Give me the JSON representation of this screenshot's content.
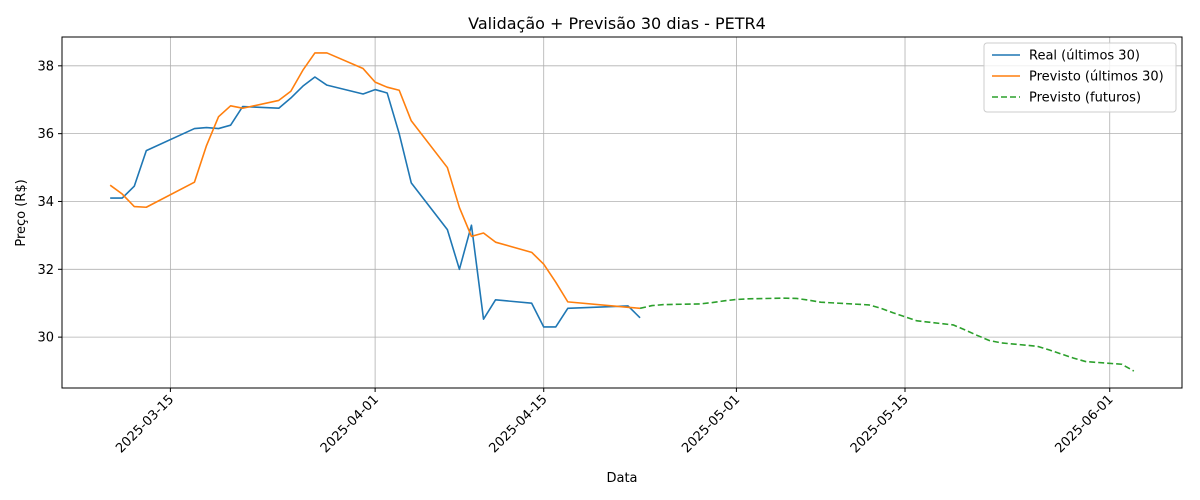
{
  "chart_data": {
    "type": "line",
    "title": "Validação + Previsão 30 dias - PETR4",
    "xlabel": "Data",
    "ylabel": "Preço (R$)",
    "xlim": [
      "2025-03-06",
      "2025-06-07"
    ],
    "ylim": [
      28.5,
      38.85
    ],
    "x_ticks": [
      "2025-03-15",
      "2025-04-01",
      "2025-04-15",
      "2025-05-01",
      "2025-05-15",
      "2025-06-01"
    ],
    "y_ticks": [
      30,
      32,
      34,
      36,
      38
    ],
    "grid": true,
    "legend_position": "top-right",
    "series": [
      {
        "name": "Real (últimos 30)",
        "color": "#1f77b4",
        "style": "solid",
        "x": [
          "2025-03-10",
          "2025-03-11",
          "2025-03-12",
          "2025-03-13",
          "2025-03-17",
          "2025-03-18",
          "2025-03-19",
          "2025-03-20",
          "2025-03-21",
          "2025-03-24",
          "2025-03-25",
          "2025-03-26",
          "2025-03-27",
          "2025-03-28",
          "2025-03-31",
          "2025-04-01",
          "2025-04-02",
          "2025-04-03",
          "2025-04-04",
          "2025-04-07",
          "2025-04-08",
          "2025-04-09",
          "2025-04-10",
          "2025-04-11",
          "2025-04-14",
          "2025-04-15",
          "2025-04-16",
          "2025-04-17",
          "2025-04-22",
          "2025-04-23"
        ],
        "y": [
          34.1,
          34.1,
          34.45,
          35.5,
          36.15,
          36.18,
          36.15,
          36.25,
          36.8,
          36.75,
          37.05,
          37.4,
          37.67,
          37.43,
          37.17,
          37.3,
          37.2,
          36.0,
          34.55,
          33.17,
          32.0,
          33.3,
          30.53,
          31.1,
          31.0,
          30.3,
          30.3,
          30.85,
          30.92,
          30.57
        ]
      },
      {
        "name": "Previsto (últimos 30)",
        "color": "#ff7f0e",
        "style": "solid",
        "x": [
          "2025-03-10",
          "2025-03-11",
          "2025-03-12",
          "2025-03-13",
          "2025-03-17",
          "2025-03-18",
          "2025-03-19",
          "2025-03-20",
          "2025-03-21",
          "2025-03-24",
          "2025-03-25",
          "2025-03-26",
          "2025-03-27",
          "2025-03-28",
          "2025-03-31",
          "2025-04-01",
          "2025-04-02",
          "2025-04-03",
          "2025-04-04",
          "2025-04-07",
          "2025-04-08",
          "2025-04-09",
          "2025-04-10",
          "2025-04-11",
          "2025-04-14",
          "2025-04-15",
          "2025-04-16",
          "2025-04-17",
          "2025-04-22",
          "2025-04-23"
        ],
        "y": [
          34.48,
          34.22,
          33.85,
          33.83,
          34.57,
          35.65,
          36.5,
          36.82,
          36.75,
          36.98,
          37.25,
          37.87,
          38.38,
          38.38,
          37.92,
          37.52,
          37.37,
          37.28,
          36.38,
          35.0,
          33.82,
          32.97,
          33.07,
          32.8,
          32.5,
          32.15,
          31.62,
          31.04,
          30.88,
          30.85
        ]
      },
      {
        "name": "Previsto (futuros)",
        "color": "#2ca02c",
        "style": "dashed",
        "x": [
          "2025-04-23",
          "2025-04-24",
          "2025-04-25",
          "2025-04-28",
          "2025-04-29",
          "2025-04-30",
          "2025-05-01",
          "2025-05-02",
          "2025-05-05",
          "2025-05-06",
          "2025-05-07",
          "2025-05-08",
          "2025-05-09",
          "2025-05-12",
          "2025-05-13",
          "2025-05-14",
          "2025-05-15",
          "2025-05-16",
          "2025-05-19",
          "2025-05-20",
          "2025-05-21",
          "2025-05-22",
          "2025-05-23",
          "2025-05-26",
          "2025-05-27",
          "2025-05-28",
          "2025-05-29",
          "2025-05-30",
          "2025-06-02",
          "2025-06-03"
        ],
        "y": [
          30.85,
          30.93,
          30.96,
          30.98,
          31.02,
          31.07,
          31.11,
          31.13,
          31.15,
          31.14,
          31.09,
          31.03,
          31.01,
          30.95,
          30.85,
          30.72,
          30.6,
          30.48,
          30.36,
          30.21,
          30.05,
          29.9,
          29.83,
          29.73,
          29.62,
          29.5,
          29.38,
          29.28,
          29.2,
          29.0
        ]
      }
    ]
  }
}
